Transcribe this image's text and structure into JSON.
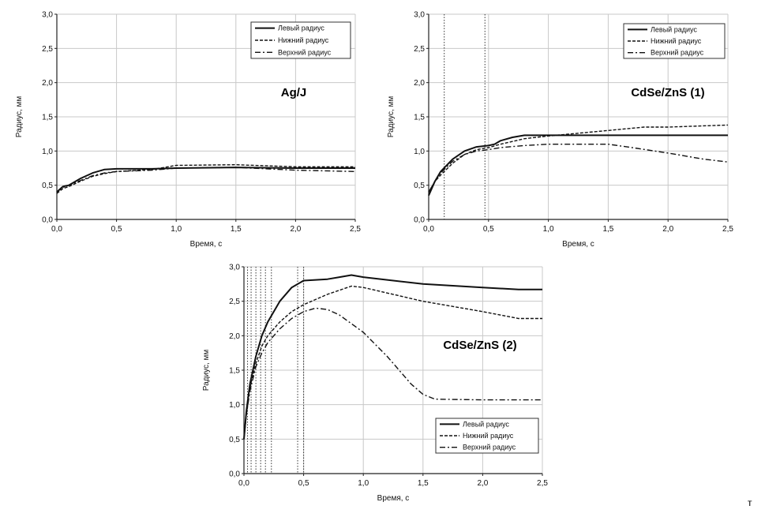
{
  "corner_mark": "т",
  "chart_data": [
    {
      "type": "line",
      "title": "Ag/J",
      "xlabel": "Время, с",
      "ylabel": "Радиус, мм",
      "xlim": [
        0,
        2.5
      ],
      "ylim": [
        0,
        3.0
      ],
      "xticks": [
        "0,0",
        "0,5",
        "1,0",
        "1,5",
        "2,0",
        "2,5"
      ],
      "yticks": [
        "0,0",
        "0,5",
        "1,0",
        "1,5",
        "2,0",
        "2,5",
        "3,0"
      ],
      "grid": true,
      "legend_position": "top-right",
      "vlines": [],
      "series": [
        {
          "name": "Левый радиус",
          "style": "solid",
          "x": [
            0,
            0.05,
            0.1,
            0.2,
            0.3,
            0.4,
            0.5,
            0.8,
            1.0,
            1.5,
            2.0,
            2.5
          ],
          "y": [
            0.4,
            0.48,
            0.5,
            0.6,
            0.68,
            0.73,
            0.74,
            0.74,
            0.75,
            0.76,
            0.75,
            0.75
          ]
        },
        {
          "name": "Нижний радиус",
          "style": "dash",
          "x": [
            0,
            0.05,
            0.1,
            0.2,
            0.3,
            0.4,
            0.5,
            0.8,
            1.0,
            1.5,
            2.0,
            2.5
          ],
          "y": [
            0.38,
            0.45,
            0.48,
            0.56,
            0.63,
            0.67,
            0.7,
            0.73,
            0.79,
            0.8,
            0.77,
            0.77
          ]
        },
        {
          "name": "Верхний радиус",
          "style": "dashdot",
          "x": [
            0,
            0.05,
            0.1,
            0.2,
            0.3,
            0.4,
            0.5,
            0.8,
            1.0,
            1.5,
            2.0,
            2.5
          ],
          "y": [
            0.4,
            0.47,
            0.5,
            0.57,
            0.64,
            0.68,
            0.7,
            0.72,
            0.75,
            0.76,
            0.72,
            0.7
          ]
        }
      ]
    },
    {
      "type": "line",
      "title": "CdSe/ZnS (1)",
      "xlabel": "Время, с",
      "ylabel": "Радиус, мм",
      "xlim": [
        0,
        2.5
      ],
      "ylim": [
        0,
        3.0
      ],
      "xticks": [
        "0,0",
        "0,5",
        "1,0",
        "1,5",
        "2,0",
        "2,5"
      ],
      "yticks": [
        "0,0",
        "0,5",
        "1,0",
        "1,5",
        "2,0",
        "2,5",
        "3,0"
      ],
      "grid": true,
      "legend_position": "top-right",
      "vlines": [
        0.13,
        0.47
      ],
      "series": [
        {
          "name": "Левый радиус",
          "style": "solid",
          "x": [
            0,
            0.05,
            0.1,
            0.2,
            0.3,
            0.4,
            0.5,
            0.55,
            0.6,
            0.7,
            0.8,
            1.0,
            1.5,
            2.0,
            2.5
          ],
          "y": [
            0.35,
            0.55,
            0.7,
            0.88,
            1.0,
            1.06,
            1.08,
            1.1,
            1.15,
            1.2,
            1.23,
            1.23,
            1.23,
            1.23,
            1.23
          ]
        },
        {
          "name": "Нижний радиус",
          "style": "dash",
          "x": [
            0,
            0.05,
            0.1,
            0.2,
            0.3,
            0.4,
            0.5,
            0.6,
            0.8,
            1.0,
            1.5,
            1.8,
            2.0,
            2.5
          ],
          "y": [
            0.4,
            0.55,
            0.65,
            0.82,
            0.95,
            1.02,
            1.05,
            1.1,
            1.18,
            1.22,
            1.3,
            1.35,
            1.35,
            1.38
          ]
        },
        {
          "name": "Верхний радиус",
          "style": "dashdot",
          "x": [
            0,
            0.05,
            0.1,
            0.2,
            0.3,
            0.4,
            0.5,
            0.6,
            0.8,
            1.0,
            1.5,
            1.7,
            2.0,
            2.3,
            2.5
          ],
          "y": [
            0.4,
            0.55,
            0.68,
            0.85,
            0.95,
            1.0,
            1.02,
            1.05,
            1.08,
            1.1,
            1.1,
            1.05,
            0.97,
            0.88,
            0.84
          ]
        }
      ]
    },
    {
      "type": "line",
      "title": "CdSe/ZnS (2)",
      "xlabel": "Время, с",
      "ylabel": "Радиус, мм",
      "xlim": [
        0,
        2.5
      ],
      "ylim": [
        0,
        3.0
      ],
      "xticks": [
        "0,0",
        "0,5",
        "1,0",
        "1,5",
        "2,0",
        "2,5"
      ],
      "yticks": [
        "0,0",
        "0,5",
        "1,0",
        "1,5",
        "2,0",
        "2,5",
        "3,0"
      ],
      "grid": true,
      "legend_position": "bottom-right",
      "vlines": [
        0.03,
        0.06,
        0.1,
        0.14,
        0.18,
        0.23,
        0.45,
        0.5
      ],
      "series": [
        {
          "name": "Левый радиус",
          "style": "solid",
          "x": [
            0,
            0.02,
            0.05,
            0.1,
            0.15,
            0.2,
            0.3,
            0.4,
            0.5,
            0.7,
            0.8,
            0.9,
            1.0,
            1.5,
            2.0,
            2.3,
            2.5
          ],
          "y": [
            0.5,
            0.9,
            1.3,
            1.7,
            2.0,
            2.2,
            2.5,
            2.7,
            2.8,
            2.82,
            2.85,
            2.88,
            2.85,
            2.75,
            2.7,
            2.67,
            2.67
          ]
        },
        {
          "name": "Нижний радиус",
          "style": "dash",
          "x": [
            0,
            0.02,
            0.05,
            0.1,
            0.15,
            0.2,
            0.3,
            0.4,
            0.5,
            0.7,
            0.9,
            1.0,
            1.5,
            2.0,
            2.3,
            2.5
          ],
          "y": [
            0.5,
            0.85,
            1.25,
            1.6,
            1.85,
            2.0,
            2.2,
            2.35,
            2.45,
            2.6,
            2.72,
            2.7,
            2.5,
            2.35,
            2.25,
            2.25
          ]
        },
        {
          "name": "Верхний радиус",
          "style": "dashdot",
          "x": [
            0,
            0.02,
            0.05,
            0.1,
            0.15,
            0.2,
            0.3,
            0.4,
            0.5,
            0.6,
            0.7,
            0.8,
            1.0,
            1.2,
            1.4,
            1.5,
            1.6,
            2.0,
            2.5
          ],
          "y": [
            0.5,
            0.85,
            1.2,
            1.55,
            1.75,
            1.9,
            2.1,
            2.25,
            2.35,
            2.4,
            2.38,
            2.3,
            2.05,
            1.7,
            1.3,
            1.15,
            1.08,
            1.07,
            1.07
          ]
        }
      ]
    }
  ]
}
